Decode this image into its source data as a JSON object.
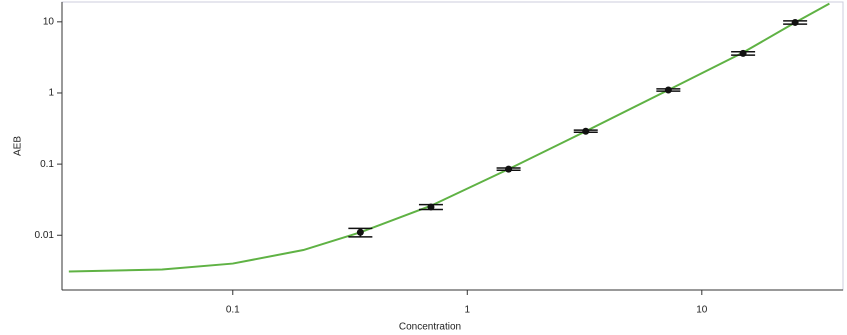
{
  "chart_data": {
    "type": "scatter",
    "x_label": "Concentration",
    "y_label": "AEB",
    "log_x": true,
    "log_y": true,
    "xlim": [
      0.0187,
      40
    ],
    "ylim": [
      0.0017,
      19
    ],
    "xticks": [
      0.1,
      1,
      10
    ],
    "yticks": [
      0.01,
      0.1,
      1,
      10
    ],
    "series": [
      {
        "type": "line",
        "color": "#5fb244",
        "x": [
          0.02,
          0.05,
          0.1,
          0.2,
          0.35,
          0.7,
          1.5,
          3.2,
          7.2,
          15,
          25,
          35
        ],
        "values": [
          0.0031,
          0.0033,
          0.004,
          0.0062,
          0.011,
          0.026,
          0.085,
          0.29,
          1.1,
          3.7,
          9.8,
          18
        ]
      },
      {
        "type": "scatter",
        "color": "#111111",
        "x": [
          0.35,
          0.7,
          1.5,
          3.2,
          7.2,
          15,
          25
        ],
        "values": [
          0.011,
          0.025,
          0.085,
          0.29,
          1.1,
          3.6,
          9.8
        ],
        "errors": [
          0.0015,
          0.002,
          0.003,
          0.01,
          0.04,
          0.2,
          0.5
        ]
      }
    ]
  }
}
